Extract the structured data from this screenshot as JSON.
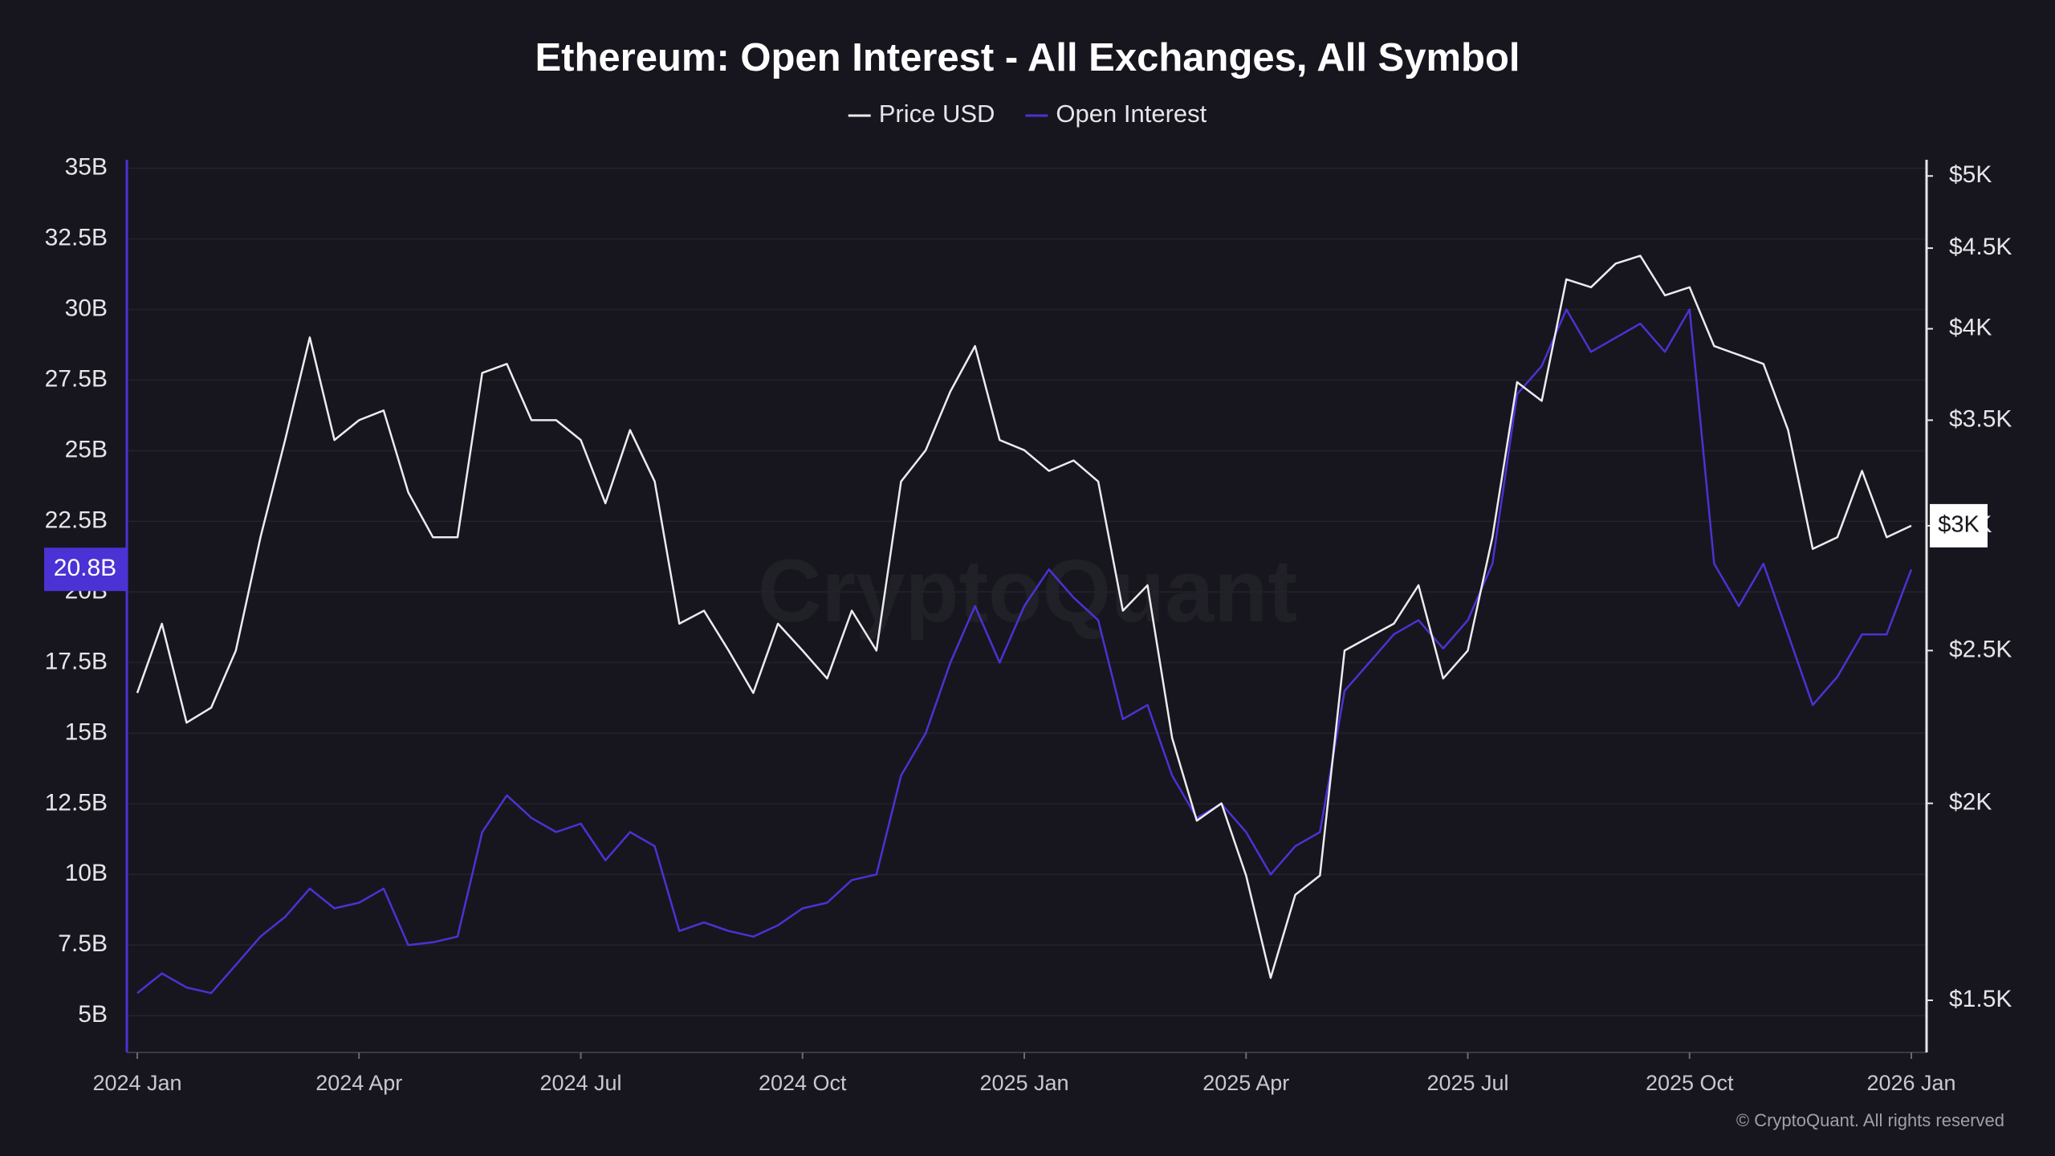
{
  "chart_data": {
    "type": "line",
    "title": "Ethereum: Open Interest - All Exchanges, All Symbol",
    "legend": "top",
    "grid": true,
    "watermark": "CryptoQuant",
    "footer": "© CryptoQuant. All rights reserved",
    "x": [
      "2024 Jan",
      null,
      null,
      null,
      null,
      null,
      null,
      null,
      null,
      "2024 Apr",
      null,
      null,
      null,
      null,
      null,
      null,
      null,
      null,
      "2024 Jul",
      null,
      null,
      null,
      null,
      null,
      null,
      null,
      null,
      "2024 Oct",
      null,
      null,
      null,
      null,
      null,
      null,
      null,
      null,
      "2025 Jan",
      null,
      null,
      null,
      null,
      null,
      null,
      null,
      null,
      "2025 Apr",
      null,
      null,
      null,
      null,
      null,
      null,
      null,
      null,
      "2025 Jul",
      null,
      null,
      null,
      null,
      null,
      null,
      null,
      null,
      "2025 Oct",
      null,
      null,
      null,
      null,
      null,
      null,
      null,
      null,
      "2026 Jan"
    ],
    "series": [
      {
        "name": "Price USD",
        "color": "#ececef",
        "axis": "y2",
        "current_label": "$3K",
        "values": [
          2350,
          2600,
          2250,
          2300,
          2500,
          2950,
          3400,
          3950,
          3400,
          3500,
          3550,
          3150,
          2950,
          2950,
          3750,
          3800,
          3500,
          3500,
          3400,
          3100,
          3450,
          3200,
          2600,
          2650,
          2500,
          2350,
          2600,
          2500,
          2400,
          2650,
          2500,
          3200,
          3350,
          3650,
          3900,
          3400,
          3350,
          3250,
          3300,
          3200,
          2650,
          2750,
          2200,
          1950,
          2000,
          1800,
          1550,
          1750,
          1800,
          2500,
          2550,
          2600,
          2750,
          2400,
          2500,
          2950,
          3700,
          3600,
          4300,
          4250,
          4400,
          4450,
          4200,
          4250,
          3900,
          3850,
          3800,
          3450,
          2900,
          2950,
          3250,
          2950,
          3000
        ]
      },
      {
        "name": "Open Interest",
        "color": "#4b32d4",
        "current_label": "20.8B",
        "values": [
          5.8,
          6.5,
          6.0,
          5.8,
          6.8,
          7.8,
          8.5,
          9.5,
          8.8,
          9.0,
          9.5,
          7.5,
          7.6,
          7.8,
          11.5,
          12.8,
          12.0,
          11.5,
          11.8,
          10.5,
          11.5,
          11.0,
          8.0,
          8.3,
          8.0,
          7.8,
          8.2,
          8.8,
          9.0,
          9.8,
          10.0,
          13.5,
          15.0,
          17.5,
          19.5,
          17.5,
          19.5,
          20.8,
          19.8,
          19.0,
          15.5,
          16.0,
          13.5,
          12.0,
          12.5,
          11.5,
          10.0,
          11.0,
          11.5,
          16.5,
          17.5,
          18.5,
          19.0,
          18.0,
          19.0,
          21.0,
          27.0,
          28.0,
          30.0,
          28.5,
          29.0,
          29.5,
          28.5,
          30.0,
          21.0,
          19.5,
          21.0,
          18.5,
          16.0,
          17.0,
          18.5,
          18.5,
          20.8
        ]
      }
    ],
    "ylim": [
      3.7,
      35.3
    ],
    "yticks": [
      {
        "value": 5,
        "label": "5B"
      },
      {
        "value": 7.5,
        "label": "7.5B"
      },
      {
        "value": 10,
        "label": "10B"
      },
      {
        "value": 12.5,
        "label": "12.5B"
      },
      {
        "value": 15,
        "label": "15B"
      },
      {
        "value": 17.5,
        "label": "17.5B"
      },
      {
        "value": 20,
        "label": "20B"
      },
      {
        "value": 22.5,
        "label": "22.5B"
      },
      {
        "value": 25,
        "label": "25B"
      },
      {
        "value": 27.5,
        "label": "27.5B"
      },
      {
        "value": 30,
        "label": "30B"
      },
      {
        "value": 32.5,
        "label": "32.5B"
      },
      {
        "value": 35,
        "label": "35B"
      }
    ],
    "y2scale": "log",
    "y2lim": [
      1390,
      5120
    ],
    "y2ticks": [
      {
        "value": 1500,
        "label": "$1.5K"
      },
      {
        "value": 2000,
        "label": "$2K"
      },
      {
        "value": 2500,
        "label": "$2.5K"
      },
      {
        "value": 3000,
        "label": "$3K"
      },
      {
        "value": 3500,
        "label": "$3.5K"
      },
      {
        "value": 4000,
        "label": "$4K"
      },
      {
        "value": 4500,
        "label": "$4.5K"
      },
      {
        "value": 5000,
        "label": "$5K"
      }
    ]
  }
}
